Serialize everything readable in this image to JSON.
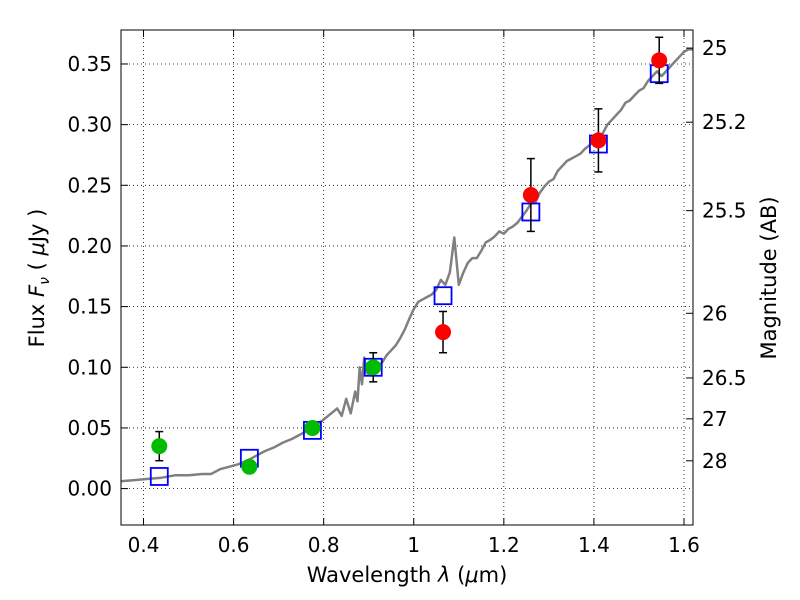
{
  "chart_data": {
    "type": "scatter",
    "xlabel": "Wavelength  λ (μm)",
    "ylabel": "Flux  F_ν  ( μJy )",
    "y2label": "Magnitude (AB)",
    "xlim": [
      0.35,
      1.62
    ],
    "ylim": [
      -0.03,
      0.378
    ],
    "grid": true,
    "x_ticks": [
      {
        "value": 0.4,
        "label": "0.4"
      },
      {
        "value": 0.6,
        "label": "0.6"
      },
      {
        "value": 0.8,
        "label": "0.8"
      },
      {
        "value": 1.0,
        "label": "1"
      },
      {
        "value": 1.2,
        "label": "1.2"
      },
      {
        "value": 1.4,
        "label": "1.4"
      },
      {
        "value": 1.6,
        "label": "1.6"
      }
    ],
    "y_ticks": [
      {
        "value": 0.0,
        "label": "0.00"
      },
      {
        "value": 0.05,
        "label": "0.05"
      },
      {
        "value": 0.1,
        "label": "0.10"
      },
      {
        "value": 0.15,
        "label": "0.15"
      },
      {
        "value": 0.2,
        "label": "0.20"
      },
      {
        "value": 0.25,
        "label": "0.25"
      },
      {
        "value": 0.3,
        "label": "0.30"
      },
      {
        "value": 0.35,
        "label": "0.35"
      }
    ],
    "y2_ticks": [
      {
        "flux": 0.3631,
        "label": "25"
      },
      {
        "flux": 0.302,
        "label": "25.2"
      },
      {
        "flux": 0.2291,
        "label": "25.5"
      },
      {
        "flux": 0.1445,
        "label": "26"
      },
      {
        "flux": 0.0912,
        "label": "26.5"
      },
      {
        "flux": 0.0575,
        "label": "27"
      },
      {
        "flux": 0.0229,
        "label": "28"
      }
    ],
    "series": [
      {
        "type": "line",
        "color": "#808080",
        "x": [
          0.35,
          0.38,
          0.41,
          0.44,
          0.47,
          0.5,
          0.53,
          0.55,
          0.57,
          0.59,
          0.61,
          0.63,
          0.65,
          0.67,
          0.69,
          0.71,
          0.73,
          0.75,
          0.77,
          0.79,
          0.81,
          0.83,
          0.84,
          0.85,
          0.86,
          0.87,
          0.875,
          0.88,
          0.885,
          0.89,
          0.895,
          0.9,
          0.91,
          0.92,
          0.93,
          0.94,
          0.95,
          0.96,
          0.97,
          0.98,
          0.99,
          1.0,
          1.01,
          1.02,
          1.03,
          1.04,
          1.05,
          1.06,
          1.07,
          1.08,
          1.09,
          1.1,
          1.11,
          1.12,
          1.13,
          1.14,
          1.15,
          1.16,
          1.17,
          1.18,
          1.19,
          1.2,
          1.21,
          1.22,
          1.23,
          1.24,
          1.25,
          1.26,
          1.27,
          1.28,
          1.29,
          1.3,
          1.31,
          1.32,
          1.33,
          1.34,
          1.35,
          1.36,
          1.37,
          1.38,
          1.39,
          1.4,
          1.41,
          1.42,
          1.43,
          1.44,
          1.45,
          1.46,
          1.47,
          1.48,
          1.49,
          1.5,
          1.51,
          1.52,
          1.53,
          1.54,
          1.55,
          1.56,
          1.57,
          1.58,
          1.59,
          1.6,
          1.61,
          1.62
        ],
        "y": [
          0.006,
          0.007,
          0.008,
          0.009,
          0.011,
          0.011,
          0.012,
          0.012,
          0.016,
          0.018,
          0.02,
          0.023,
          0.027,
          0.031,
          0.034,
          0.038,
          0.041,
          0.045,
          0.049,
          0.054,
          0.06,
          0.066,
          0.06,
          0.074,
          0.062,
          0.08,
          0.072,
          0.1,
          0.086,
          0.108,
          0.096,
          0.094,
          0.097,
          0.101,
          0.104,
          0.11,
          0.114,
          0.118,
          0.124,
          0.131,
          0.14,
          0.148,
          0.154,
          0.156,
          0.158,
          0.16,
          0.164,
          0.172,
          0.168,
          0.178,
          0.207,
          0.168,
          0.178,
          0.186,
          0.19,
          0.19,
          0.196,
          0.203,
          0.205,
          0.208,
          0.212,
          0.21,
          0.214,
          0.216,
          0.219,
          0.224,
          0.229,
          0.235,
          0.236,
          0.244,
          0.249,
          0.253,
          0.255,
          0.262,
          0.266,
          0.27,
          0.272,
          0.274,
          0.276,
          0.28,
          0.283,
          0.286,
          0.289,
          0.293,
          0.3,
          0.304,
          0.308,
          0.312,
          0.318,
          0.32,
          0.324,
          0.328,
          0.33,
          0.336,
          0.34,
          0.344,
          0.34,
          0.344,
          0.348,
          0.352,
          0.356,
          0.36,
          0.362,
          0.362
        ]
      },
      {
        "type": "square",
        "color": "#0000ff",
        "points": [
          {
            "x": 0.435,
            "y": 0.01
          },
          {
            "x": 0.635,
            "y": 0.025
          },
          {
            "x": 0.775,
            "y": 0.048
          },
          {
            "x": 0.91,
            "y": 0.1
          },
          {
            "x": 1.065,
            "y": 0.159
          },
          {
            "x": 1.26,
            "y": 0.228
          },
          {
            "x": 1.41,
            "y": 0.284
          },
          {
            "x": 1.545,
            "y": 0.342
          }
        ]
      },
      {
        "type": "circle",
        "color": "#00bb00",
        "points": [
          {
            "x": 0.435,
            "y": 0.035,
            "err": 0.012
          },
          {
            "x": 0.635,
            "y": 0.018,
            "err": 0.003
          },
          {
            "x": 0.775,
            "y": 0.05,
            "err": 0.005
          },
          {
            "x": 0.91,
            "y": 0.1,
            "err": 0.012
          }
        ]
      },
      {
        "type": "circle",
        "color": "#ff0000",
        "points": [
          {
            "x": 1.065,
            "y": 0.129,
            "err": 0.017
          },
          {
            "x": 1.26,
            "y": 0.242,
            "err": 0.03
          },
          {
            "x": 1.41,
            "y": 0.287,
            "err": 0.026
          },
          {
            "x": 1.545,
            "y": 0.353,
            "err": 0.019
          }
        ]
      }
    ]
  }
}
